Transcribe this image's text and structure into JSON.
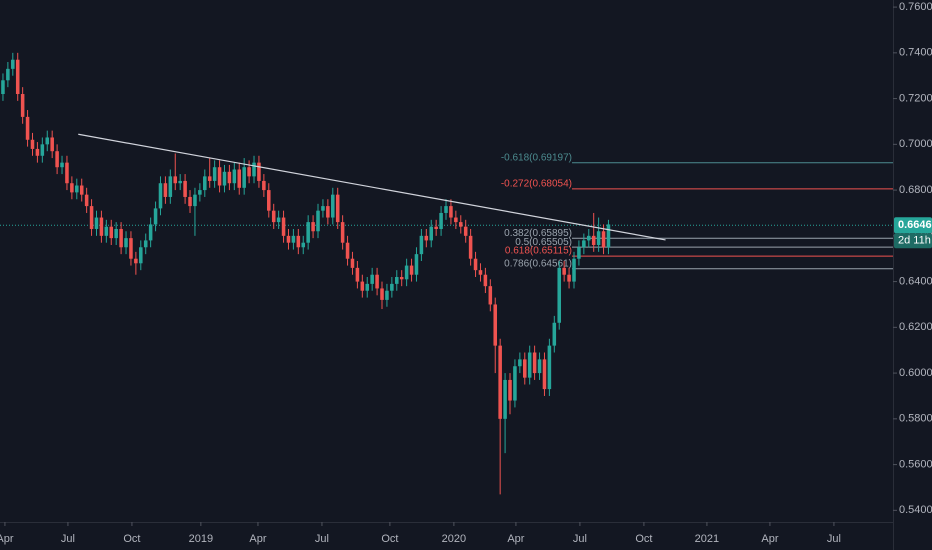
{
  "chart_data": {
    "type": "candlestick",
    "open": [
      0.722,
      0.728,
      0.733,
      0.737,
      0.722,
      0.712,
      0.702,
      0.698,
      0.695,
      0.7,
      0.703,
      0.697,
      0.69,
      0.692,
      0.683,
      0.679,
      0.682,
      0.678,
      0.673,
      0.663,
      0.668,
      0.66,
      0.664,
      0.659,
      0.663,
      0.655,
      0.659,
      0.65,
      0.648,
      0.655,
      0.658,
      0.665,
      0.672,
      0.683,
      0.677,
      0.686,
      0.683,
      0.684,
      0.677,
      0.673,
      0.678,
      0.68,
      0.686,
      0.684,
      0.69,
      0.682,
      0.688,
      0.683,
      0.689,
      0.681,
      0.69,
      0.686,
      0.692,
      0.684,
      0.68,
      0.671,
      0.666,
      0.668,
      0.66,
      0.657,
      0.66,
      0.655,
      0.657,
      0.666,
      0.662,
      0.671,
      0.673,
      0.668,
      0.678,
      0.666,
      0.657,
      0.65,
      0.646,
      0.64,
      0.636,
      0.639,
      0.643,
      0.637,
      0.632,
      0.636,
      0.639,
      0.642,
      0.641,
      0.647,
      0.643,
      0.652,
      0.66,
      0.658,
      0.664,
      0.663,
      0.67,
      0.673,
      0.668,
      0.666,
      0.664,
      0.66,
      0.65,
      0.645,
      0.643,
      0.638,
      0.63,
      0.612,
      0.58,
      0.597,
      0.588,
      0.603,
      0.606,
      0.598,
      0.609,
      0.6,
      0.606,
      0.593,
      0.612,
      0.622,
      0.646,
      0.643,
      0.64,
      0.65,
      0.655,
      0.658,
      0.66,
      0.656,
      0.662,
      0.655
    ],
    "high": [
      0.731,
      0.736,
      0.74,
      0.74,
      0.725,
      0.715,
      0.705,
      0.701,
      0.703,
      0.706,
      0.706,
      0.7,
      0.695,
      0.695,
      0.686,
      0.685,
      0.685,
      0.681,
      0.676,
      0.671,
      0.671,
      0.667,
      0.667,
      0.666,
      0.666,
      0.662,
      0.662,
      0.653,
      0.658,
      0.661,
      0.668,
      0.675,
      0.686,
      0.686,
      0.689,
      0.696,
      0.687,
      0.687,
      0.68,
      0.681,
      0.683,
      0.689,
      0.694,
      0.693,
      0.693,
      0.691,
      0.691,
      0.692,
      0.692,
      0.694,
      0.693,
      0.695,
      0.695,
      0.687,
      0.683,
      0.674,
      0.671,
      0.671,
      0.663,
      0.663,
      0.663,
      0.66,
      0.669,
      0.669,
      0.674,
      0.676,
      0.676,
      0.681,
      0.681,
      0.669,
      0.66,
      0.653,
      0.649,
      0.643,
      0.642,
      0.646,
      0.646,
      0.64,
      0.639,
      0.642,
      0.645,
      0.645,
      0.65,
      0.65,
      0.655,
      0.663,
      0.663,
      0.667,
      0.667,
      0.673,
      0.676,
      0.676,
      0.671,
      0.669,
      0.667,
      0.663,
      0.653,
      0.648,
      0.646,
      0.641,
      0.633,
      0.615,
      0.6,
      0.6,
      0.606,
      0.609,
      0.609,
      0.612,
      0.612,
      0.609,
      0.609,
      0.615,
      0.625,
      0.649,
      0.649,
      0.646,
      0.653,
      0.658,
      0.661,
      0.663,
      0.67,
      0.668,
      0.665,
      0.667
    ],
    "low": [
      0.719,
      0.725,
      0.73,
      0.719,
      0.709,
      0.699,
      0.695,
      0.692,
      0.692,
      0.697,
      0.694,
      0.687,
      0.687,
      0.68,
      0.676,
      0.676,
      0.675,
      0.67,
      0.66,
      0.66,
      0.657,
      0.657,
      0.656,
      0.656,
      0.652,
      0.652,
      0.647,
      0.643,
      0.645,
      0.652,
      0.655,
      0.662,
      0.669,
      0.674,
      0.674,
      0.68,
      0.68,
      0.674,
      0.67,
      0.66,
      0.675,
      0.677,
      0.681,
      0.681,
      0.679,
      0.679,
      0.68,
      0.68,
      0.678,
      0.678,
      0.683,
      0.683,
      0.681,
      0.677,
      0.668,
      0.663,
      0.663,
      0.657,
      0.654,
      0.654,
      0.652,
      0.652,
      0.654,
      0.659,
      0.659,
      0.668,
      0.665,
      0.665,
      0.663,
      0.654,
      0.647,
      0.643,
      0.637,
      0.633,
      0.633,
      0.636,
      0.634,
      0.628,
      0.629,
      0.633,
      0.636,
      0.638,
      0.638,
      0.64,
      0.64,
      0.649,
      0.655,
      0.655,
      0.66,
      0.66,
      0.667,
      0.665,
      0.663,
      0.661,
      0.657,
      0.647,
      0.642,
      0.64,
      0.635,
      0.627,
      0.6,
      0.547,
      0.565,
      0.582,
      0.585,
      0.6,
      0.595,
      0.595,
      0.597,
      0.597,
      0.59,
      0.59,
      0.609,
      0.619,
      0.64,
      0.637,
      0.637,
      0.647,
      0.652,
      0.655,
      0.653,
      0.653,
      0.652,
      0.652
    ],
    "close": [
      0.728,
      0.733,
      0.737,
      0.722,
      0.712,
      0.702,
      0.698,
      0.695,
      0.7,
      0.703,
      0.697,
      0.69,
      0.692,
      0.683,
      0.679,
      0.682,
      0.678,
      0.673,
      0.663,
      0.668,
      0.66,
      0.664,
      0.659,
      0.663,
      0.655,
      0.659,
      0.65,
      0.648,
      0.655,
      0.658,
      0.665,
      0.672,
      0.683,
      0.677,
      0.686,
      0.683,
      0.684,
      0.677,
      0.673,
      0.678,
      0.68,
      0.686,
      0.684,
      0.69,
      0.682,
      0.688,
      0.683,
      0.689,
      0.681,
      0.69,
      0.686,
      0.692,
      0.684,
      0.68,
      0.671,
      0.666,
      0.668,
      0.66,
      0.657,
      0.66,
      0.655,
      0.657,
      0.666,
      0.662,
      0.671,
      0.673,
      0.668,
      0.678,
      0.666,
      0.657,
      0.65,
      0.646,
      0.64,
      0.636,
      0.639,
      0.643,
      0.637,
      0.632,
      0.636,
      0.639,
      0.642,
      0.641,
      0.647,
      0.643,
      0.652,
      0.66,
      0.658,
      0.664,
      0.663,
      0.67,
      0.673,
      0.668,
      0.666,
      0.664,
      0.66,
      0.65,
      0.645,
      0.643,
      0.638,
      0.63,
      0.612,
      0.58,
      0.597,
      0.588,
      0.603,
      0.606,
      0.598,
      0.609,
      0.6,
      0.606,
      0.593,
      0.612,
      0.622,
      0.646,
      0.643,
      0.64,
      0.65,
      0.655,
      0.658,
      0.66,
      0.656,
      0.662,
      0.655,
      0.665
    ],
    "up_color": "#26a69a",
    "down_color": "#ef5350",
    "xlim": [
      -0.6,
      180.8
    ],
    "xticks": [
      {
        "value": 0.4,
        "label": "Apr"
      },
      {
        "value": 13.2,
        "label": "Jul"
      },
      {
        "value": 26.2,
        "label": "Oct"
      },
      {
        "value": 40.2,
        "label": "2019"
      },
      {
        "value": 51.8,
        "label": "Apr"
      },
      {
        "value": 64.8,
        "label": "Jul"
      },
      {
        "value": 78.6,
        "label": "Oct"
      },
      {
        "value": 91.6,
        "label": "2020"
      },
      {
        "value": 104.2,
        "label": "Apr"
      },
      {
        "value": 117.2,
        "label": "Jul"
      },
      {
        "value": 130.2,
        "label": "Oct"
      },
      {
        "value": 143.0,
        "label": "2021"
      },
      {
        "value": 155.8,
        "label": "Apr"
      },
      {
        "value": 168.8,
        "label": "Jul"
      }
    ],
    "ylim": [
      0.5349,
      0.7631
    ],
    "yticks": [
      {
        "value": 0.76,
        "label": "0.76000"
      },
      {
        "value": 0.74,
        "label": "0.74000"
      },
      {
        "value": 0.72,
        "label": "0.72000"
      },
      {
        "value": 0.7,
        "label": "0.70000"
      },
      {
        "value": 0.68,
        "label": "0.68000"
      },
      {
        "value": 0.66,
        "label": "0.66000"
      },
      {
        "value": 0.64,
        "label": "0.64000"
      },
      {
        "value": 0.62,
        "label": "0.62000"
      },
      {
        "value": 0.6,
        "label": "0.60000"
      },
      {
        "value": 0.58,
        "label": "0.58000"
      },
      {
        "value": 0.56,
        "label": "0.56000"
      },
      {
        "value": 0.54,
        "label": "0.54000"
      }
    ],
    "last_price": 0.66461,
    "last_price_color": "#26a69a",
    "countdown": "2d 11h",
    "trendline": {
      "x": [
        15.3,
        134.6
      ],
      "y": [
        0.7044,
        0.6582
      ],
      "color": "#d1d4dc"
    },
    "fib_levels": [
      {
        "label": "-0.618(0.69197)",
        "value": 0.69197,
        "color": "#4c8b8f"
      },
      {
        "label": "-0.272(0.68054)",
        "value": 0.68054,
        "color": "#f05350"
      },
      {
        "label": "0.382(0.65895)",
        "value": 0.65895,
        "color": "#9aa3ad"
      },
      {
        "label": "0.5(0.65505)",
        "value": 0.65505,
        "color": "#9aa3ad"
      },
      {
        "label": "0.618(0.65115)",
        "value": 0.65115,
        "color": "#f05350"
      },
      {
        "label": "0.786(0.64561)",
        "value": 0.64561,
        "color": "#9aa3ad"
      }
    ]
  }
}
